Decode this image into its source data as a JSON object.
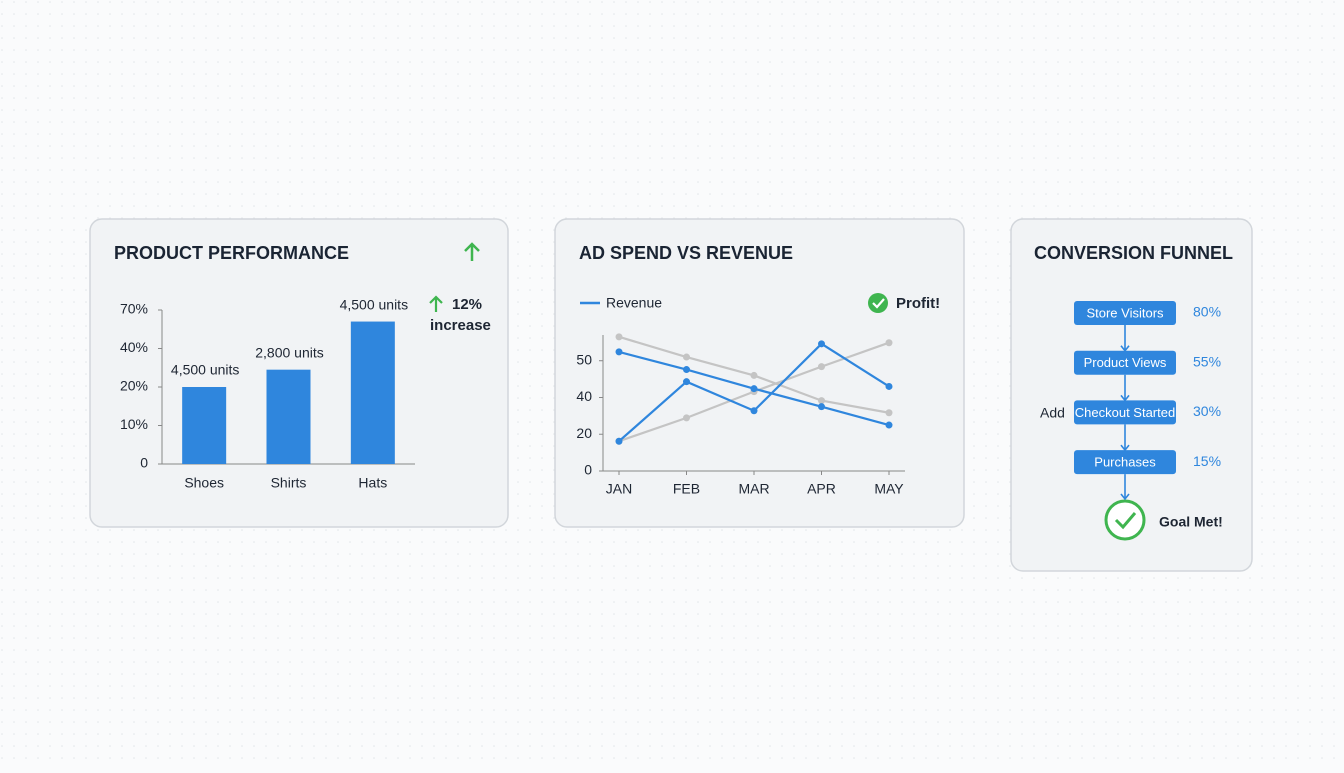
{
  "chart_data": [
    {
      "type": "bar",
      "title": "PRODUCT PERFORMANCE",
      "categories": [
        "Shoes",
        "Shirts",
        "Hats"
      ],
      "values": [
        20,
        29,
        61
      ],
      "color": "#2f86dd",
      "bar_labels": [
        "4,500 units",
        "2,800 units",
        "4,500 units"
      ],
      "annotation": "12% increase",
      "ylim": [
        0,
        70
      ],
      "yticks": [
        0,
        {
          "value": 10,
          "label": "10%"
        },
        {
          "value": 20,
          "label": "20%"
        },
        {
          "value": 40,
          "label": "40%"
        },
        {
          "value": 70,
          "label": "70%"
        }
      ]
    },
    {
      "type": "line",
      "title": "AD SPEND VS REVENUE",
      "categories": [
        "JAN",
        "FEB",
        "MAR",
        "APR",
        "MAY"
      ],
      "series": [
        {
          "name": "Revenue",
          "color": "#2f86dd",
          "values": [
            52.4,
            47.6,
            42.4,
            35,
            25
          ]
        },
        {
          "color": "#2f86dd",
          "values": [
            16.2,
            44.3,
            32.8,
            54.6,
            43
          ]
        },
        {
          "color": "#c4c4c4",
          "values": [
            56.5,
            51,
            46,
            38.3,
            31.7
          ]
        },
        {
          "color": "#c4c4c4",
          "values": [
            16.2,
            28.9,
            41.6,
            48.4,
            54.9
          ]
        }
      ],
      "annotation": "Profit!",
      "ylim": [
        0,
        57
      ],
      "yticks": [
        0,
        20,
        40,
        50
      ]
    },
    {
      "type": "funnel",
      "title": "CONVERSION FUNNEL",
      "categories": [
        "Store Visitors",
        "Product Views",
        "Checkout Started",
        "Purchases"
      ],
      "values": [
        80,
        55,
        30,
        15
      ],
      "value_labels": [
        "80%",
        "55%",
        "30%",
        "15%"
      ],
      "color": "#2f86dd",
      "side_label": "Add",
      "annotation": "Goal Met!"
    }
  ]
}
